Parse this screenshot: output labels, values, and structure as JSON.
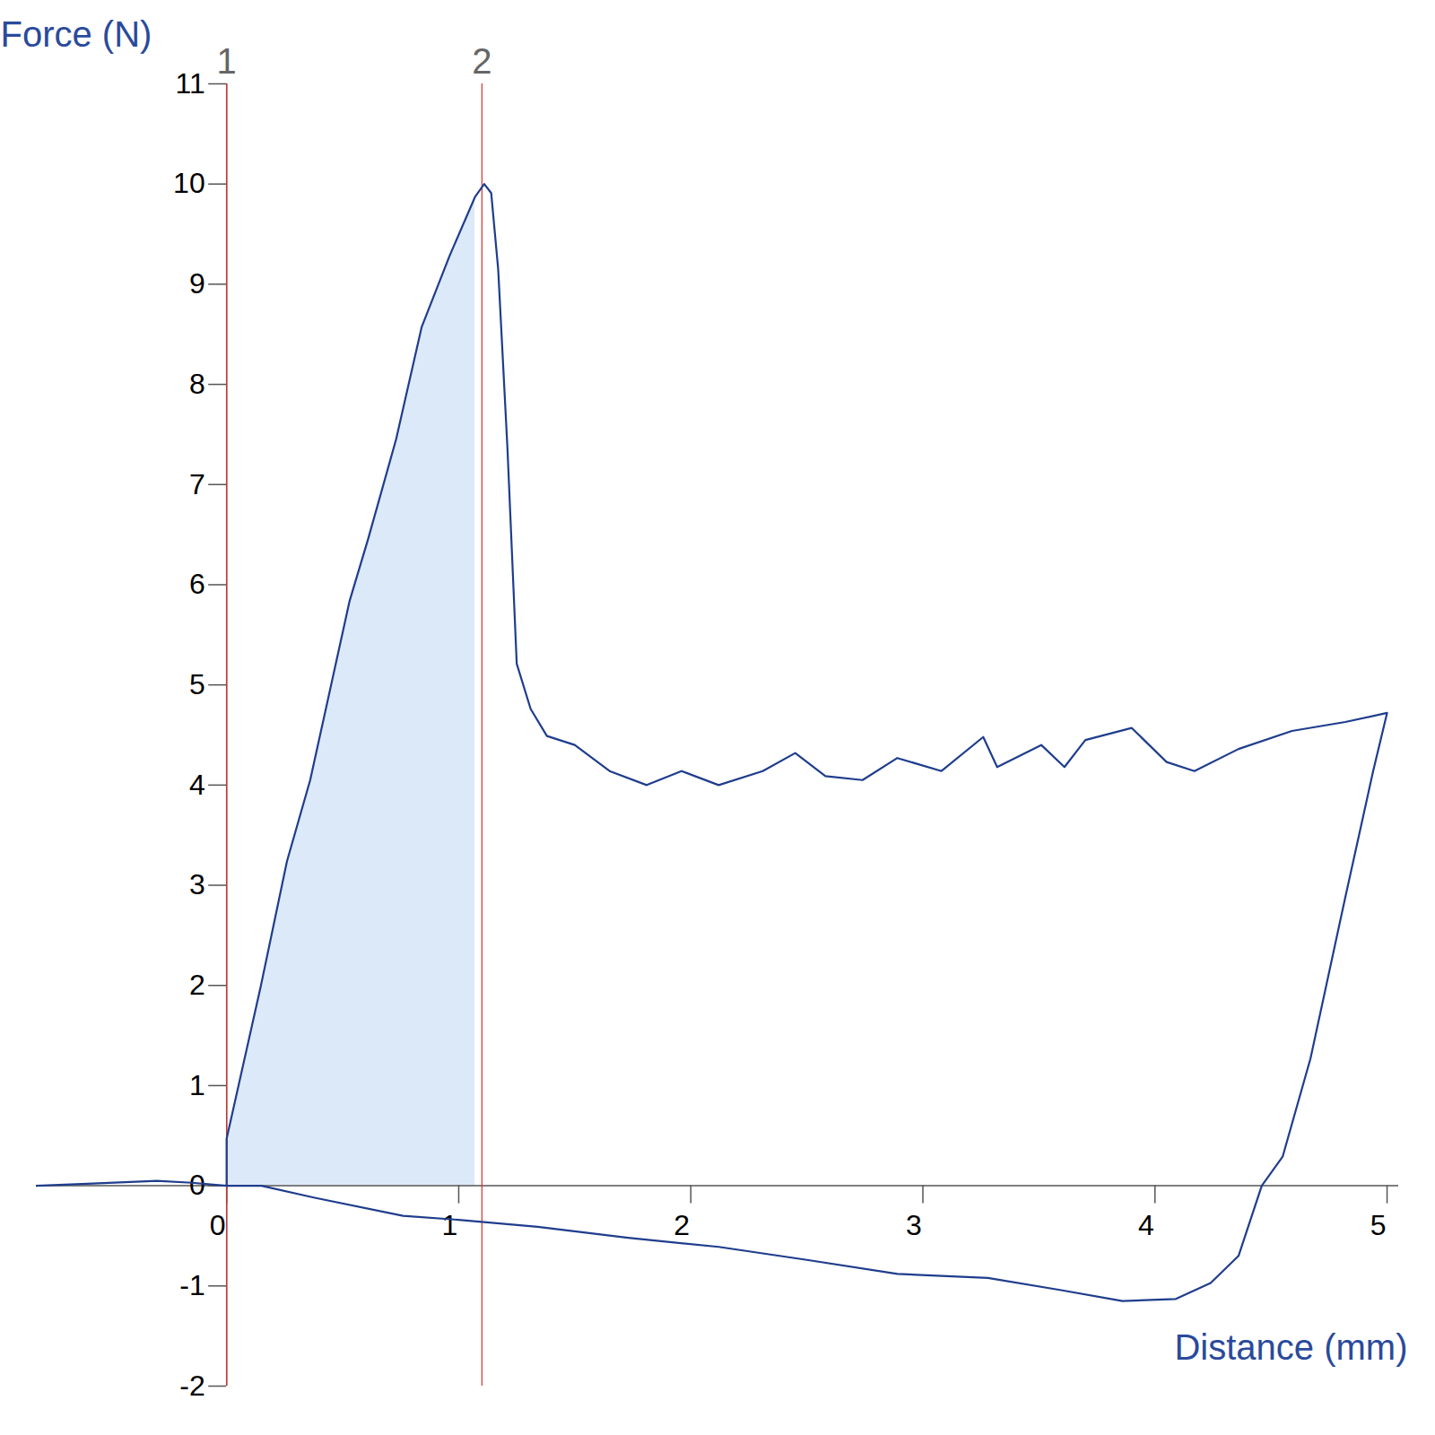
{
  "chart_data": {
    "type": "line",
    "xlabel": "Distance (mm)",
    "ylabel": "Force (N)",
    "xlim": [
      -0.82,
      5.05
    ],
    "ylim": [
      -2,
      11
    ],
    "xticks": [
      0,
      1,
      2,
      3,
      4,
      5
    ],
    "yticks": [
      -2,
      -1,
      0,
      1,
      2,
      3,
      4,
      5,
      6,
      7,
      8,
      9,
      10,
      11
    ],
    "grid": false,
    "series": [
      {
        "color": "#1f3d8c",
        "x": [
          -0.82,
          -0.6,
          -0.3,
          -0.15,
          0,
          0,
          0.147,
          0.26,
          0.36,
          0.53,
          0.61,
          0.73,
          0.84,
          0.96,
          1.07,
          1.11,
          1.14,
          1.17,
          1.21,
          1.25,
          1.31,
          1.38,
          1.5,
          1.65,
          1.81,
          1.96,
          2.12,
          2.31,
          2.45,
          2.58,
          2.74,
          2.89,
          3.08,
          3.26,
          3.32,
          3.51,
          3.61,
          3.7,
          3.9,
          4.05,
          4.17,
          4.36,
          4.59,
          4.82,
          5.0,
          4.94,
          4.82,
          4.67,
          4.55,
          4.46,
          4.36,
          4.24,
          4.09,
          3.86,
          3.59,
          3.28,
          2.89,
          2.5,
          2.12,
          1.73,
          1.34,
          1.0,
          0.76,
          0.38,
          0.15,
          0
        ],
        "values": [
          0,
          0.02,
          0.05,
          0.03,
          0,
          0.47,
          1.99,
          3.24,
          4.05,
          5.84,
          6.46,
          7.45,
          8.57,
          9.28,
          9.87,
          10.0,
          9.91,
          9.15,
          7.36,
          5.21,
          4.76,
          4.49,
          4.4,
          4.14,
          4.0,
          4.14,
          4.0,
          4.14,
          4.32,
          4.09,
          4.05,
          4.27,
          4.14,
          4.48,
          4.18,
          4.4,
          4.18,
          4.45,
          4.57,
          4.23,
          4.14,
          4.36,
          4.54,
          4.63,
          4.72,
          4.14,
          2.88,
          1.27,
          0.29,
          0,
          -0.7,
          -0.97,
          -1.13,
          -1.15,
          -1.04,
          -0.92,
          -0.88,
          -0.74,
          -0.61,
          -0.52,
          -0.41,
          -0.34,
          -0.3,
          -0.12,
          0,
          0
        ]
      }
    ],
    "markers": [
      {
        "label": "1",
        "x": 0
      },
      {
        "label": "2",
        "x": 1.1
      }
    ]
  }
}
